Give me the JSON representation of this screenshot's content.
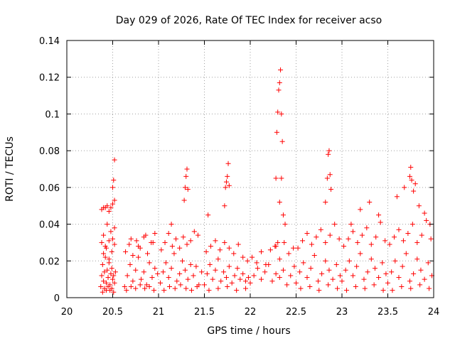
{
  "chart_data": {
    "type": "scatter",
    "title": "Day 029 of 2026, Rate Of TEC Index for receiver acso",
    "xlabel": "GPS time / hours",
    "ylabel": "ROTI / TECUs",
    "xlim": [
      20,
      24
    ],
    "ylim": [
      0,
      0.14
    ],
    "grid": true,
    "marker": "+",
    "color": "#ff0000",
    "xticks": [
      20,
      20.5,
      21,
      21.5,
      22,
      22.5,
      23,
      23.5,
      24
    ],
    "yticks": [
      0,
      0.02,
      0.04,
      0.06,
      0.08,
      0.1,
      0.12,
      0.14
    ],
    "xtick_labels": [
      "20",
      "20.5",
      "21",
      "21.5",
      "22",
      "22.5",
      "23",
      "23.5",
      "24"
    ],
    "ytick_labels": [
      "0",
      "0.02",
      "0.04",
      "0.06",
      "0.08",
      "0.1",
      "0.12",
      "0.14"
    ],
    "series": [
      {
        "name": "ROTI",
        "x": [
          20.37,
          20.38,
          20.39,
          20.4,
          20.41,
          20.42,
          20.43,
          20.44,
          20.45,
          20.46,
          20.47,
          20.48,
          20.49,
          20.5,
          20.51,
          20.52,
          20.53,
          20.38,
          20.4,
          20.42,
          20.44,
          20.46,
          20.48,
          20.5,
          20.52,
          20.38,
          20.4,
          20.42,
          20.44,
          20.46,
          20.48,
          20.5,
          20.52,
          20.39,
          20.41,
          20.43,
          20.45,
          20.47,
          20.49,
          20.51,
          20.4,
          20.43,
          20.46,
          20.49,
          20.52,
          20.5,
          20.51,
          20.52,
          20.63,
          20.66,
          20.69,
          20.72,
          20.75,
          20.78,
          20.81,
          20.84,
          20.87,
          20.9,
          20.93,
          20.96,
          20.99,
          20.64,
          20.68,
          20.72,
          20.76,
          20.8,
          20.84,
          20.88,
          20.92,
          20.96,
          20.65,
          20.7,
          20.75,
          20.8,
          20.85,
          20.9,
          20.95,
          20.7,
          20.78,
          20.86,
          20.94,
          21.02,
          21.05,
          21.08,
          21.11,
          21.14,
          21.17,
          21.2,
          21.23,
          21.26,
          21.29,
          21.32,
          21.35,
          21.38,
          21.41,
          21.44,
          21.47,
          21.03,
          21.07,
          21.11,
          21.15,
          21.19,
          21.23,
          21.27,
          21.31,
          21.35,
          21.39,
          21.43,
          21.06,
          21.12,
          21.18,
          21.24,
          21.3,
          21.36,
          21.42,
          21.14,
          21.28,
          21.29,
          21.3,
          21.31,
          21.32,
          21.5,
          21.53,
          21.56,
          21.59,
          21.62,
          21.65,
          21.68,
          21.71,
          21.74,
          21.77,
          21.8,
          21.83,
          21.86,
          21.89,
          21.92,
          21.95,
          21.98,
          21.52,
          21.57,
          21.62,
          21.67,
          21.72,
          21.77,
          21.82,
          21.87,
          21.92,
          21.97,
          21.55,
          21.65,
          21.75,
          21.85,
          21.95,
          21.54,
          21.72,
          21.73,
          21.74,
          21.75,
          21.76,
          21.77,
          22.0,
          22.04,
          22.08,
          22.12,
          22.16,
          22.2,
          22.24,
          22.28,
          22.32,
          22.36,
          22.4,
          22.44,
          22.48,
          22.02,
          22.07,
          22.12,
          22.17,
          22.22,
          22.27,
          22.32,
          22.37,
          22.42,
          22.47,
          22.28,
          22.29,
          22.3,
          22.31,
          22.32,
          22.33,
          22.34,
          22.35,
          22.28,
          22.3,
          22.32,
          22.34,
          22.36,
          22.38,
          22.5,
          22.54,
          22.58,
          22.62,
          22.66,
          22.7,
          22.74,
          22.78,
          22.82,
          22.86,
          22.9,
          22.94,
          22.98,
          22.52,
          22.57,
          22.62,
          22.67,
          22.72,
          22.77,
          22.82,
          22.87,
          22.92,
          22.97,
          22.55,
          22.65,
          22.75,
          22.85,
          22.95,
          22.82,
          22.84,
          22.85,
          22.86,
          22.87,
          22.88,
          23.0,
          23.04,
          23.08,
          23.12,
          23.16,
          23.2,
          23.24,
          23.28,
          23.32,
          23.36,
          23.4,
          23.44,
          23.48,
          23.02,
          23.07,
          23.12,
          23.17,
          23.22,
          23.27,
          23.32,
          23.37,
          23.42,
          23.47,
          23.05,
          23.15,
          23.25,
          23.35,
          23.45,
          23.1,
          23.2,
          23.3,
          23.4,
          23.5,
          23.54,
          23.58,
          23.62,
          23.66,
          23.7,
          23.74,
          23.78,
          23.82,
          23.86,
          23.9,
          23.94,
          23.98,
          23.52,
          23.57,
          23.62,
          23.67,
          23.72,
          23.77,
          23.82,
          23.87,
          23.92,
          23.97,
          23.55,
          23.65,
          23.75,
          23.85,
          23.95,
          23.6,
          23.68,
          23.74,
          23.75,
          23.76,
          23.78,
          23.8,
          23.84,
          23.9,
          23.96
        ],
        "y": [
          0.006,
          0.012,
          0.018,
          0.009,
          0.014,
          0.022,
          0.008,
          0.015,
          0.011,
          0.019,
          0.007,
          0.013,
          0.016,
          0.01,
          0.012,
          0.008,
          0.014,
          0.03,
          0.034,
          0.028,
          0.04,
          0.031,
          0.036,
          0.032,
          0.038,
          0.048,
          0.049,
          0.049,
          0.05,
          0.047,
          0.049,
          0.051,
          0.053,
          0.003,
          0.005,
          0.004,
          0.006,
          0.004,
          0.005,
          0.003,
          0.024,
          0.027,
          0.021,
          0.025,
          0.029,
          0.06,
          0.064,
          0.075,
          0.006,
          0.012,
          0.018,
          0.009,
          0.015,
          0.022,
          0.01,
          0.014,
          0.007,
          0.019,
          0.011,
          0.016,
          0.013,
          0.025,
          0.029,
          0.023,
          0.031,
          0.027,
          0.033,
          0.024,
          0.03,
          0.035,
          0.004,
          0.006,
          0.005,
          0.007,
          0.005,
          0.006,
          0.004,
          0.032,
          0.028,
          0.034,
          0.03,
          0.008,
          0.014,
          0.019,
          0.011,
          0.016,
          0.024,
          0.009,
          0.013,
          0.02,
          0.015,
          0.01,
          0.018,
          0.012,
          0.017,
          0.007,
          0.014,
          0.026,
          0.03,
          0.035,
          0.028,
          0.032,
          0.027,
          0.033,
          0.029,
          0.031,
          0.036,
          0.034,
          0.004,
          0.006,
          0.005,
          0.007,
          0.005,
          0.004,
          0.006,
          0.04,
          0.053,
          0.06,
          0.066,
          0.07,
          0.059,
          0.007,
          0.013,
          0.018,
          0.01,
          0.015,
          0.021,
          0.009,
          0.014,
          0.011,
          0.017,
          0.008,
          0.012,
          0.016,
          0.01,
          0.013,
          0.009,
          0.011,
          0.025,
          0.028,
          0.031,
          0.026,
          0.03,
          0.027,
          0.024,
          0.029,
          0.022,
          0.02,
          0.004,
          0.005,
          0.006,
          0.004,
          0.005,
          0.045,
          0.05,
          0.06,
          0.063,
          0.066,
          0.073,
          0.061,
          0.008,
          0.012,
          0.016,
          0.01,
          0.014,
          0.018,
          0.009,
          0.013,
          0.011,
          0.015,
          0.007,
          0.012,
          0.017,
          0.022,
          0.019,
          0.025,
          0.018,
          0.026,
          0.028,
          0.021,
          0.03,
          0.024,
          0.027,
          0.065,
          0.09,
          0.101,
          0.113,
          0.117,
          0.124,
          0.1,
          0.085,
          0.028,
          0.03,
          0.052,
          0.065,
          0.045,
          0.04,
          0.008,
          0.014,
          0.019,
          0.011,
          0.016,
          0.023,
          0.009,
          0.013,
          0.02,
          0.015,
          0.01,
          0.018,
          0.012,
          0.027,
          0.031,
          0.035,
          0.029,
          0.033,
          0.037,
          0.03,
          0.034,
          0.04,
          0.032,
          0.005,
          0.006,
          0.004,
          0.007,
          0.005,
          0.052,
          0.065,
          0.078,
          0.08,
          0.067,
          0.059,
          0.009,
          0.015,
          0.02,
          0.012,
          0.017,
          0.024,
          0.01,
          0.014,
          0.021,
          0.016,
          0.011,
          0.019,
          0.013,
          0.028,
          0.032,
          0.036,
          0.03,
          0.034,
          0.038,
          0.029,
          0.033,
          0.041,
          0.031,
          0.004,
          0.006,
          0.005,
          0.007,
          0.004,
          0.04,
          0.048,
          0.052,
          0.045,
          0.008,
          0.014,
          0.02,
          0.011,
          0.017,
          0.024,
          0.009,
          0.013,
          0.021,
          0.015,
          0.01,
          0.019,
          0.012,
          0.029,
          0.033,
          0.037,
          0.031,
          0.035,
          0.04,
          0.03,
          0.034,
          0.042,
          0.032,
          0.004,
          0.006,
          0.005,
          0.007,
          0.005,
          0.055,
          0.06,
          0.066,
          0.071,
          0.064,
          0.058,
          0.062,
          0.05,
          0.046,
          0.04
        ]
      }
    ]
  }
}
